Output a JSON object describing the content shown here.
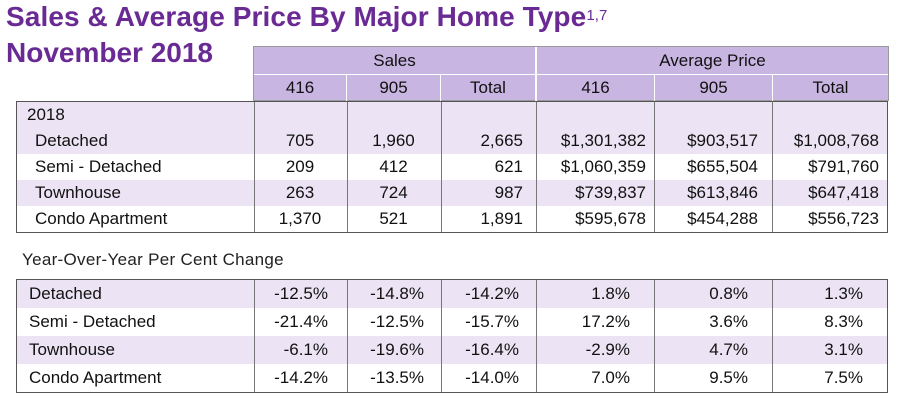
{
  "title": "Sales & Average Price By Major Home Type",
  "title_superscript": "1,7",
  "subtitle": "November 2018",
  "header": {
    "group_sales": "Sales",
    "group_avg_price": "Average Price",
    "cols": [
      "416",
      "905",
      "Total",
      "416",
      "905",
      "Total"
    ]
  },
  "year_label": "2018",
  "sales_rows": [
    {
      "label": "Detached",
      "values": [
        "705",
        "1,960",
        "2,665",
        "$1,301,382",
        "$903,517",
        "$1,008,768"
      ]
    },
    {
      "label": "Semi - Detached",
      "values": [
        "209",
        "412",
        "621",
        "$1,060,359",
        "$655,504",
        "$791,760"
      ]
    },
    {
      "label": "Townhouse",
      "values": [
        "263",
        "724",
        "987",
        "$739,837",
        "$613,846",
        "$647,418"
      ]
    },
    {
      "label": "Condo Apartment",
      "values": [
        "1,370",
        "521",
        "1,891",
        "$595,678",
        "$454,288",
        "$556,723"
      ]
    }
  ],
  "yoy_title": "Year-Over-Year Per Cent Change",
  "yoy_rows": [
    {
      "label": "Detached",
      "values": [
        "-12.5%",
        "-14.8%",
        "-14.2%",
        "1.8%",
        "0.8%",
        "1.3%"
      ]
    },
    {
      "label": "Semi - Detached",
      "values": [
        "-21.4%",
        "-12.5%",
        "-15.7%",
        "17.2%",
        "3.6%",
        "8.3%"
      ]
    },
    {
      "label": "Townhouse",
      "values": [
        "-6.1%",
        "-19.6%",
        "-16.4%",
        "-2.9%",
        "4.7%",
        "3.1%"
      ]
    },
    {
      "label": "Condo Apartment",
      "values": [
        "-14.2%",
        "-13.5%",
        "-14.0%",
        "7.0%",
        "9.5%",
        "7.5%"
      ]
    }
  ],
  "colors": {
    "title": "#6a2a94",
    "header_bg": "#c9b5e2",
    "row_shade": "#ece4f4"
  }
}
